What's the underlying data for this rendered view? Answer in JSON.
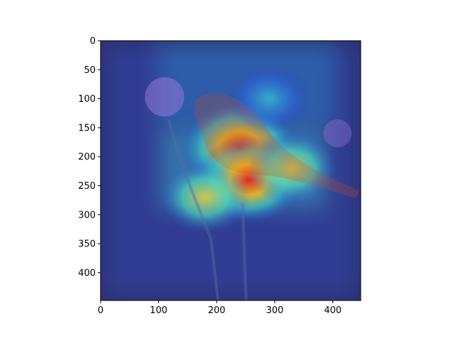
{
  "chart_data": {
    "type": "heatmap",
    "title": "",
    "xlabel": "",
    "ylabel": "",
    "image_size": [
      448,
      448
    ],
    "xlim": [
      0,
      448
    ],
    "ylim": [
      448,
      0
    ],
    "x_ticks": [
      0,
      100,
      200,
      300,
      400
    ],
    "y_ticks": [
      0,
      50,
      100,
      150,
      200,
      250,
      300,
      350,
      400
    ],
    "grid": false,
    "colormap": "jet",
    "background_color": "#2b3170",
    "hotspots": [
      {
        "x": 240,
        "y": 185,
        "intensity": 1.0
      },
      {
        "x": 255,
        "y": 240,
        "intensity": 0.85
      },
      {
        "x": 330,
        "y": 220,
        "intensity": 0.55
      },
      {
        "x": 180,
        "y": 270,
        "intensity": 0.55
      },
      {
        "x": 290,
        "y": 100,
        "intensity": 0.45
      }
    ]
  }
}
